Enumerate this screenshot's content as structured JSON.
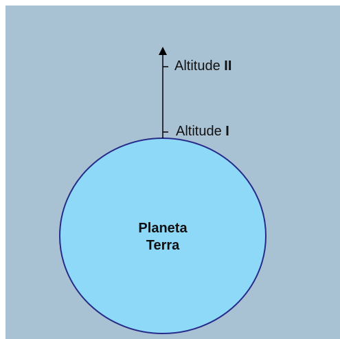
{
  "planet": {
    "lines": [
      "Planeta",
      "Terra"
    ]
  },
  "altitudes": [
    {
      "word": "Altitude",
      "numeral": "II"
    },
    {
      "word": "Altitude",
      "numeral": "I"
    }
  ]
}
